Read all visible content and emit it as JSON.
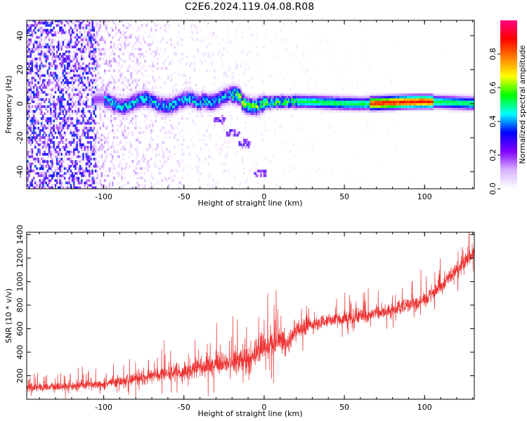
{
  "title": "C2E6.2024.119.04.08.R08",
  "chart_data": [
    {
      "type": "heatmap",
      "xlabel": "Height of straight line (km)",
      "ylabel": "Frequency (Hz)",
      "xlim": [
        -148,
        131
      ],
      "ylim": [
        -50,
        49
      ],
      "xticks": [
        -100,
        -50,
        0,
        50,
        100
      ],
      "yticks": [
        -40,
        -20,
        0,
        20,
        40
      ],
      "colorbar": {
        "label": "Normalized spectral amplitude",
        "range": [
          0,
          1
        ],
        "ticks": [
          "0.0",
          "0.2",
          "0.4",
          "0.6",
          "0.8"
        ],
        "tick_values": [
          0.0,
          0.2,
          0.4,
          0.6,
          0.8
        ],
        "colormap": [
          "#ffffff",
          "#d9b3ff",
          "#8000ff",
          "#0000ff",
          "#00ffff",
          "#00ff00",
          "#ffff00",
          "#ff8000",
          "#ff0000",
          "#ff0080"
        ]
      },
      "features": {
        "noise_region_x": [
          -148,
          -105
        ],
        "signal_band_center_hz": 0,
        "signal_band_x": [
          -108,
          131
        ],
        "scatter_trail": [
          [
            -28,
            -10
          ],
          [
            -20,
            -18
          ],
          [
            -12,
            -24
          ],
          [
            -2,
            -42
          ]
        ]
      }
    },
    {
      "type": "line",
      "xlabel": "Height of straight line (km)",
      "ylabel": "SNR (10 * v/v)",
      "xlim": [
        -148,
        131
      ],
      "ylim": [
        0,
        1420
      ],
      "xticks": [
        -100,
        -50,
        0,
        50,
        100
      ],
      "yticks": [
        200,
        400,
        600,
        800,
        1000,
        1200,
        1400
      ],
      "color": "#ee3333",
      "trend": {
        "x": [
          -148,
          -120,
          -100,
          -80,
          -60,
          -40,
          -20,
          -10,
          0,
          10,
          15,
          20,
          30,
          50,
          70,
          90,
          100,
          110,
          120,
          131
        ],
        "y": [
          100,
          110,
          130,
          170,
          220,
          260,
          320,
          360,
          450,
          500,
          470,
          580,
          640,
          690,
          730,
          800,
          850,
          960,
          1100,
          1240
        ]
      },
      "noise_amplitude": [
        80,
        80,
        90,
        120,
        150,
        180,
        220,
        250,
        260,
        240,
        200,
        160,
        130,
        120,
        120,
        130,
        150,
        160,
        150,
        140
      ]
    }
  ]
}
